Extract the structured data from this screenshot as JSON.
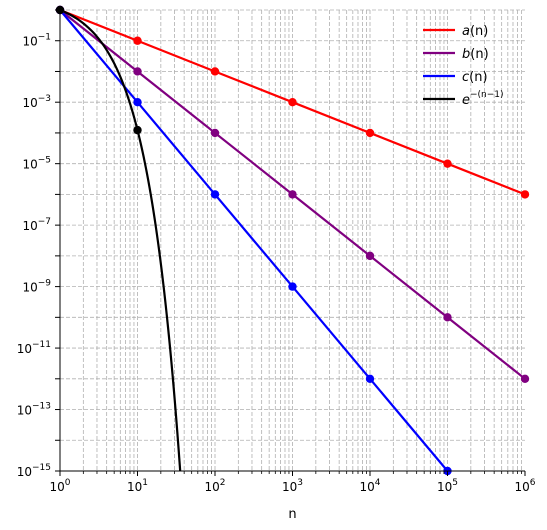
{
  "chart_data": {
    "type": "line",
    "x_scale": "log",
    "y_scale": "log",
    "xlim": [
      1,
      1000000
    ],
    "ylim": [
      1e-15,
      1
    ],
    "xlabel": "n",
    "ylabel": "",
    "grid": true,
    "legend_position": "top-right",
    "x_tick_labels": [
      {
        "base": "10",
        "exp": "0"
      },
      {
        "base": "10",
        "exp": "1"
      },
      {
        "base": "10",
        "exp": "2"
      },
      {
        "base": "10",
        "exp": "3"
      },
      {
        "base": "10",
        "exp": "4"
      },
      {
        "base": "10",
        "exp": "5"
      },
      {
        "base": "10",
        "exp": "6"
      }
    ],
    "y_tick_labels": [
      {
        "base": "10",
        "exp": "−1"
      },
      {
        "base": "10",
        "exp": "−3"
      },
      {
        "base": "10",
        "exp": "−5"
      },
      {
        "base": "10",
        "exp": "−7"
      },
      {
        "base": "10",
        "exp": "−9"
      },
      {
        "base": "10",
        "exp": "−11"
      },
      {
        "base": "10",
        "exp": "−13"
      },
      {
        "base": "10",
        "exp": "−15"
      }
    ],
    "series": [
      {
        "name": "a(n)",
        "color": "#ff0000",
        "x": [
          1,
          10,
          100,
          1000,
          10000,
          100000,
          1000000
        ],
        "y": [
          1,
          0.1,
          0.01,
          0.001,
          0.0001,
          1e-05,
          1e-06
        ]
      },
      {
        "name": "b(n)",
        "color": "#800080",
        "x": [
          1,
          10,
          100,
          1000,
          10000,
          100000,
          1000000
        ],
        "y": [
          1,
          0.01,
          0.0001,
          1e-06,
          1e-08,
          1e-10,
          1e-12
        ]
      },
      {
        "name": "c(n)",
        "color": "#0000ff",
        "x": [
          1,
          10,
          100,
          1000,
          10000,
          100000
        ],
        "y": [
          1,
          0.001,
          1e-06,
          1e-09,
          1e-12,
          1e-15
        ]
      },
      {
        "name": "e^{-(n-1)}",
        "color": "#000000",
        "function": "exp(-(n-1))",
        "x": [
          1,
          10
        ],
        "y": [
          1,
          0.0001234
        ]
      }
    ],
    "legend": [
      {
        "italic": "a",
        "rest": "(n)",
        "color": "#ff0000"
      },
      {
        "italic": "b",
        "rest": "(n)",
        "color": "#800080"
      },
      {
        "italic": "c",
        "rest": "(n)",
        "color": "#0000ff"
      },
      {
        "italic": "e",
        "sup": "−(n−1)",
        "color": "#000000"
      }
    ]
  }
}
